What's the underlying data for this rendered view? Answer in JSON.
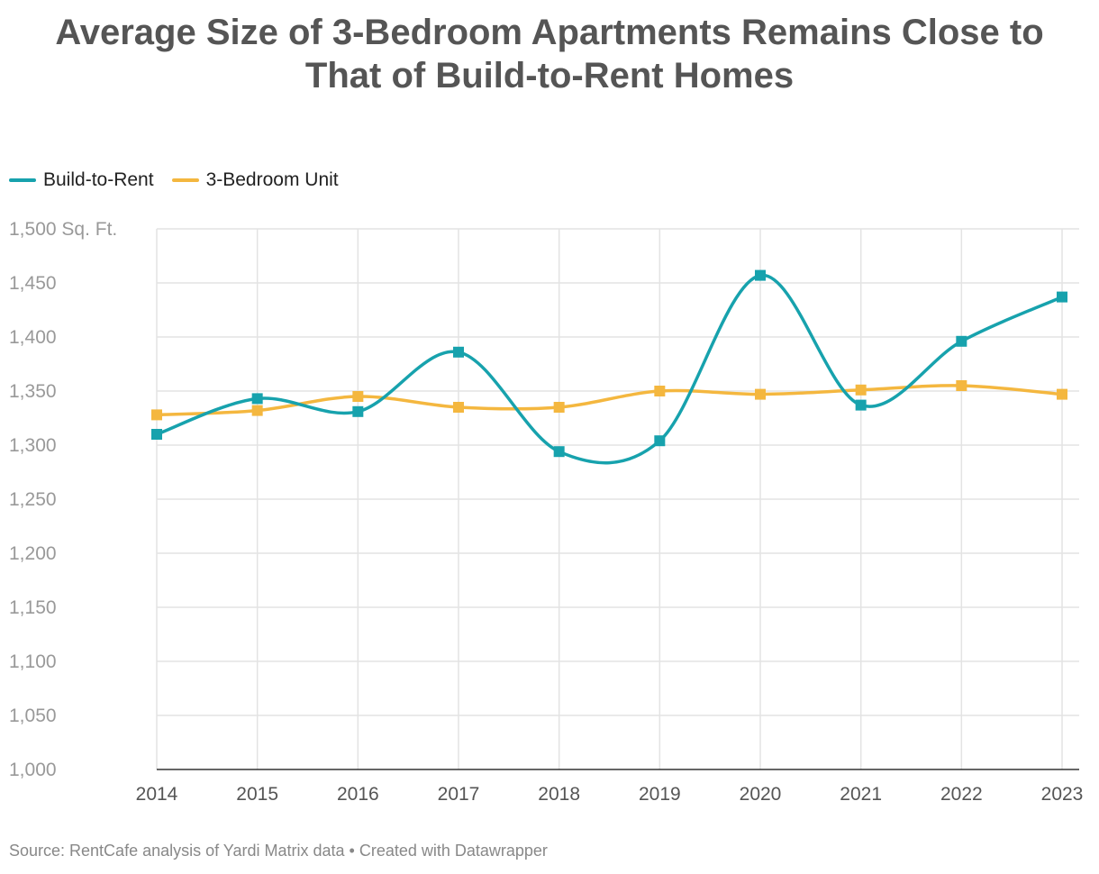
{
  "chart_data": {
    "type": "line",
    "title_lines": [
      "Average Size of 3-Bedroom Apartments Remains Close to",
      "That of Build-to-Rent Homes"
    ],
    "categories": [
      "2014",
      "2015",
      "2016",
      "2017",
      "2018",
      "2019",
      "2020",
      "2021",
      "2022",
      "2023"
    ],
    "series": [
      {
        "name": "Build-to-Rent",
        "color": "#17a2ad",
        "values": [
          1310,
          1343,
          1331,
          1386,
          1294,
          1304,
          1457,
          1337,
          1396,
          1437
        ]
      },
      {
        "name": "3-Bedroom Unit",
        "color": "#f4b73f",
        "values": [
          1328,
          1332,
          1345,
          1335,
          1335,
          1350,
          1347,
          1351,
          1355,
          1347
        ]
      }
    ],
    "ylim": [
      1000,
      1500
    ],
    "yticks": [
      1000,
      1050,
      1100,
      1150,
      1200,
      1250,
      1300,
      1350,
      1400,
      1450,
      1500
    ],
    "ytick_labels": [
      "1,000",
      "1,050",
      "1,100",
      "1,150",
      "1,200",
      "1,250",
      "1,300",
      "1,350",
      "1,400",
      "1,450",
      "1,500 Sq. Ft."
    ],
    "grid": true,
    "legend": "top-left",
    "source": "Source: RentCafe analysis of Yardi Matrix data • Created with Datawrapper"
  }
}
